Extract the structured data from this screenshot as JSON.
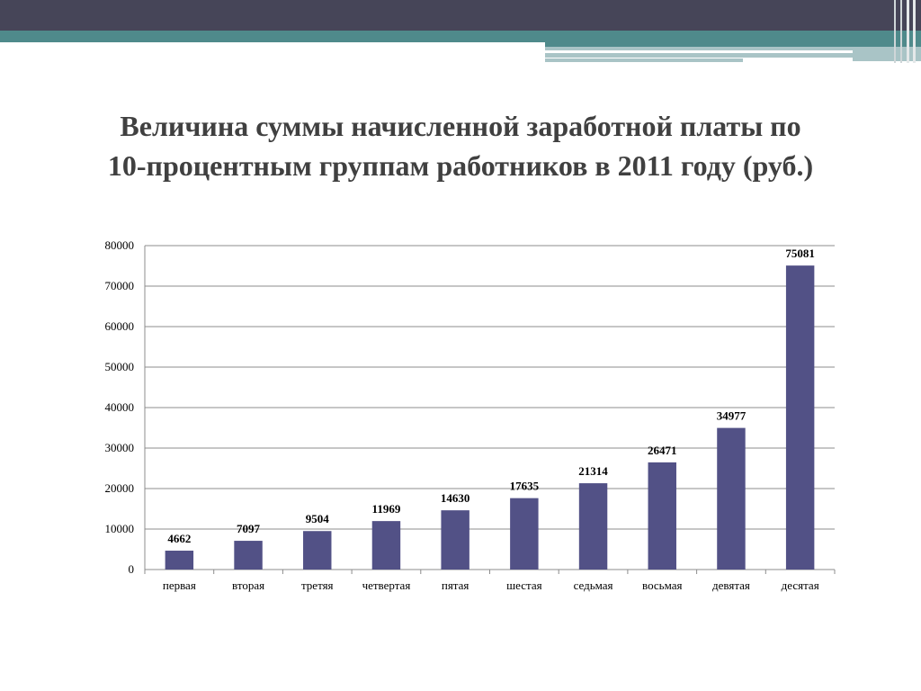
{
  "slide": {
    "title_line1": "Величина суммы начисленной заработной платы по",
    "title_line2": "10-процентным группам работников в 2011 году (руб.)",
    "colors": {
      "top_band": "#464558",
      "teal": "#4f8a8b",
      "pale_teal": "#a9c4c6",
      "bar": "#525186",
      "title": "#404040"
    }
  },
  "chart_data": {
    "type": "bar",
    "title": "",
    "xlabel": "",
    "ylabel": "",
    "categories": [
      "первая",
      "вторая",
      "третяя",
      "четвертая",
      "пятая",
      "шестая",
      "седьмая",
      "восьмая",
      "девятая",
      "десятая"
    ],
    "values": [
      4662,
      7097,
      9504,
      11969,
      14630,
      17635,
      21314,
      26471,
      34977,
      75081
    ],
    "ylim": [
      0,
      80000
    ],
    "yticks": [
      0,
      10000,
      20000,
      30000,
      40000,
      50000,
      60000,
      70000,
      80000
    ],
    "grid": true,
    "legend": "none",
    "data_labels": true
  }
}
